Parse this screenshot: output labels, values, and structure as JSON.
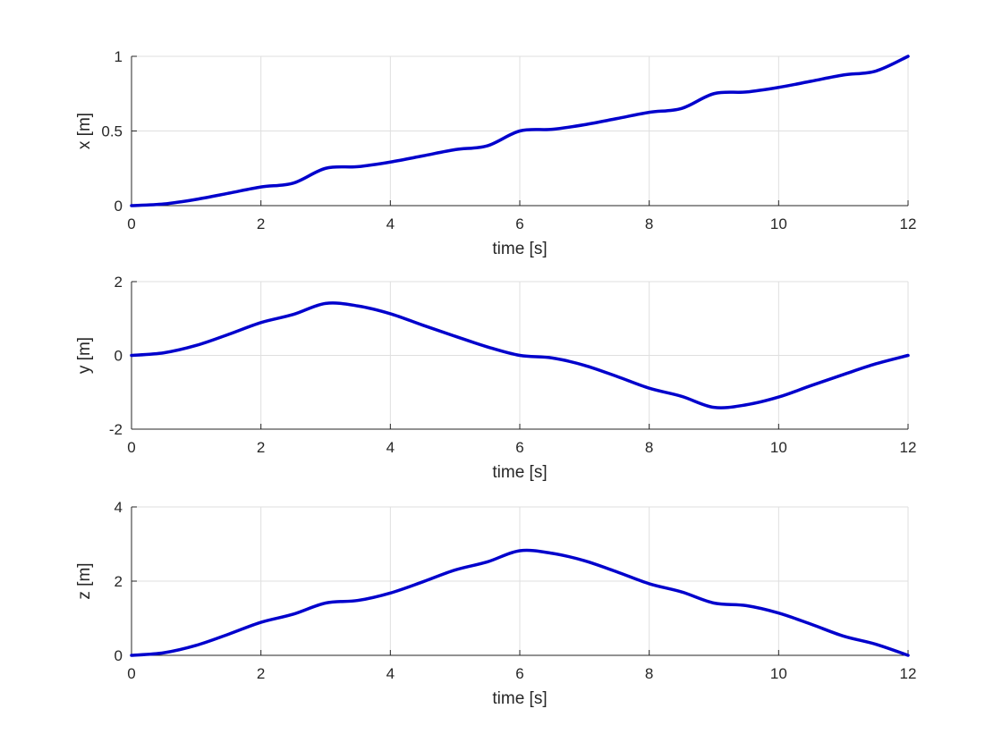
{
  "chart_data": [
    {
      "type": "line",
      "xlabel": "time [s]",
      "ylabel": "x [m]",
      "xlim": [
        0,
        12
      ],
      "ylim": [
        0,
        1
      ],
      "xticks": [
        "0",
        "2",
        "4",
        "6",
        "8",
        "10",
        "12"
      ],
      "yticks": [
        "0",
        "0.5",
        "1"
      ],
      "grid": true,
      "color": "#0000cc",
      "series": [
        {
          "x": [
            0,
            0.5,
            1,
            1.5,
            2,
            2.5,
            3,
            3.5,
            4,
            4.5,
            5,
            5.5,
            6,
            6.5,
            7,
            7.5,
            8,
            8.5,
            9,
            9.5,
            10,
            10.5,
            11,
            11.5,
            12
          ],
          "y": [
            0,
            0.011,
            0.042,
            0.083,
            0.125,
            0.151,
            0.25,
            0.261,
            0.292,
            0.333,
            0.375,
            0.401,
            0.5,
            0.511,
            0.542,
            0.583,
            0.625,
            0.651,
            0.75,
            0.761,
            0.792,
            0.833,
            0.875,
            0.901,
            1
          ]
        }
      ]
    },
    {
      "type": "line",
      "xlabel": "time [s]",
      "ylabel": "y [m]",
      "xlim": [
        0,
        12
      ],
      "ylim": [
        -2,
        2
      ],
      "xticks": [
        "0",
        "2",
        "4",
        "6",
        "8",
        "10",
        "12"
      ],
      "yticks": [
        "-2",
        "0",
        "2"
      ],
      "grid": true,
      "color": "#0000cc",
      "series": [
        {
          "x": [
            0,
            0.5,
            1,
            1.5,
            2,
            2.5,
            3,
            3.5,
            4,
            4.5,
            5,
            5.5,
            6,
            6.5,
            7,
            7.5,
            8,
            8.5,
            9,
            9.5,
            10,
            10.5,
            11,
            11.5,
            12
          ],
          "y": [
            0,
            0.07,
            0.27,
            0.57,
            0.89,
            1.11,
            1.41,
            1.34,
            1.13,
            0.82,
            0.52,
            0.23,
            0,
            -0.07,
            -0.27,
            -0.57,
            -0.89,
            -1.11,
            -1.41,
            -1.34,
            -1.13,
            -0.82,
            -0.52,
            -0.23,
            0
          ]
        }
      ]
    },
    {
      "type": "line",
      "xlabel": "time [s]",
      "ylabel": "z [m]",
      "xlim": [
        0,
        12
      ],
      "ylim": [
        0,
        4
      ],
      "xticks": [
        "0",
        "2",
        "4",
        "6",
        "8",
        "10",
        "12"
      ],
      "yticks": [
        "0",
        "2",
        "4"
      ],
      "grid": true,
      "color": "#0000cc",
      "series": [
        {
          "x": [
            0,
            0.5,
            1,
            1.5,
            2,
            2.5,
            3,
            3.5,
            4,
            4.5,
            5,
            5.5,
            6,
            6.5,
            7,
            7.5,
            8,
            8.5,
            9,
            9.5,
            10,
            10.5,
            11,
            11.5,
            12
          ],
          "y": [
            0,
            0.07,
            0.27,
            0.57,
            0.89,
            1.11,
            1.41,
            1.48,
            1.68,
            1.98,
            2.3,
            2.52,
            2.82,
            2.75,
            2.55,
            2.25,
            1.93,
            1.71,
            1.41,
            1.34,
            1.14,
            0.84,
            0.52,
            0.3,
            0
          ]
        }
      ]
    }
  ]
}
